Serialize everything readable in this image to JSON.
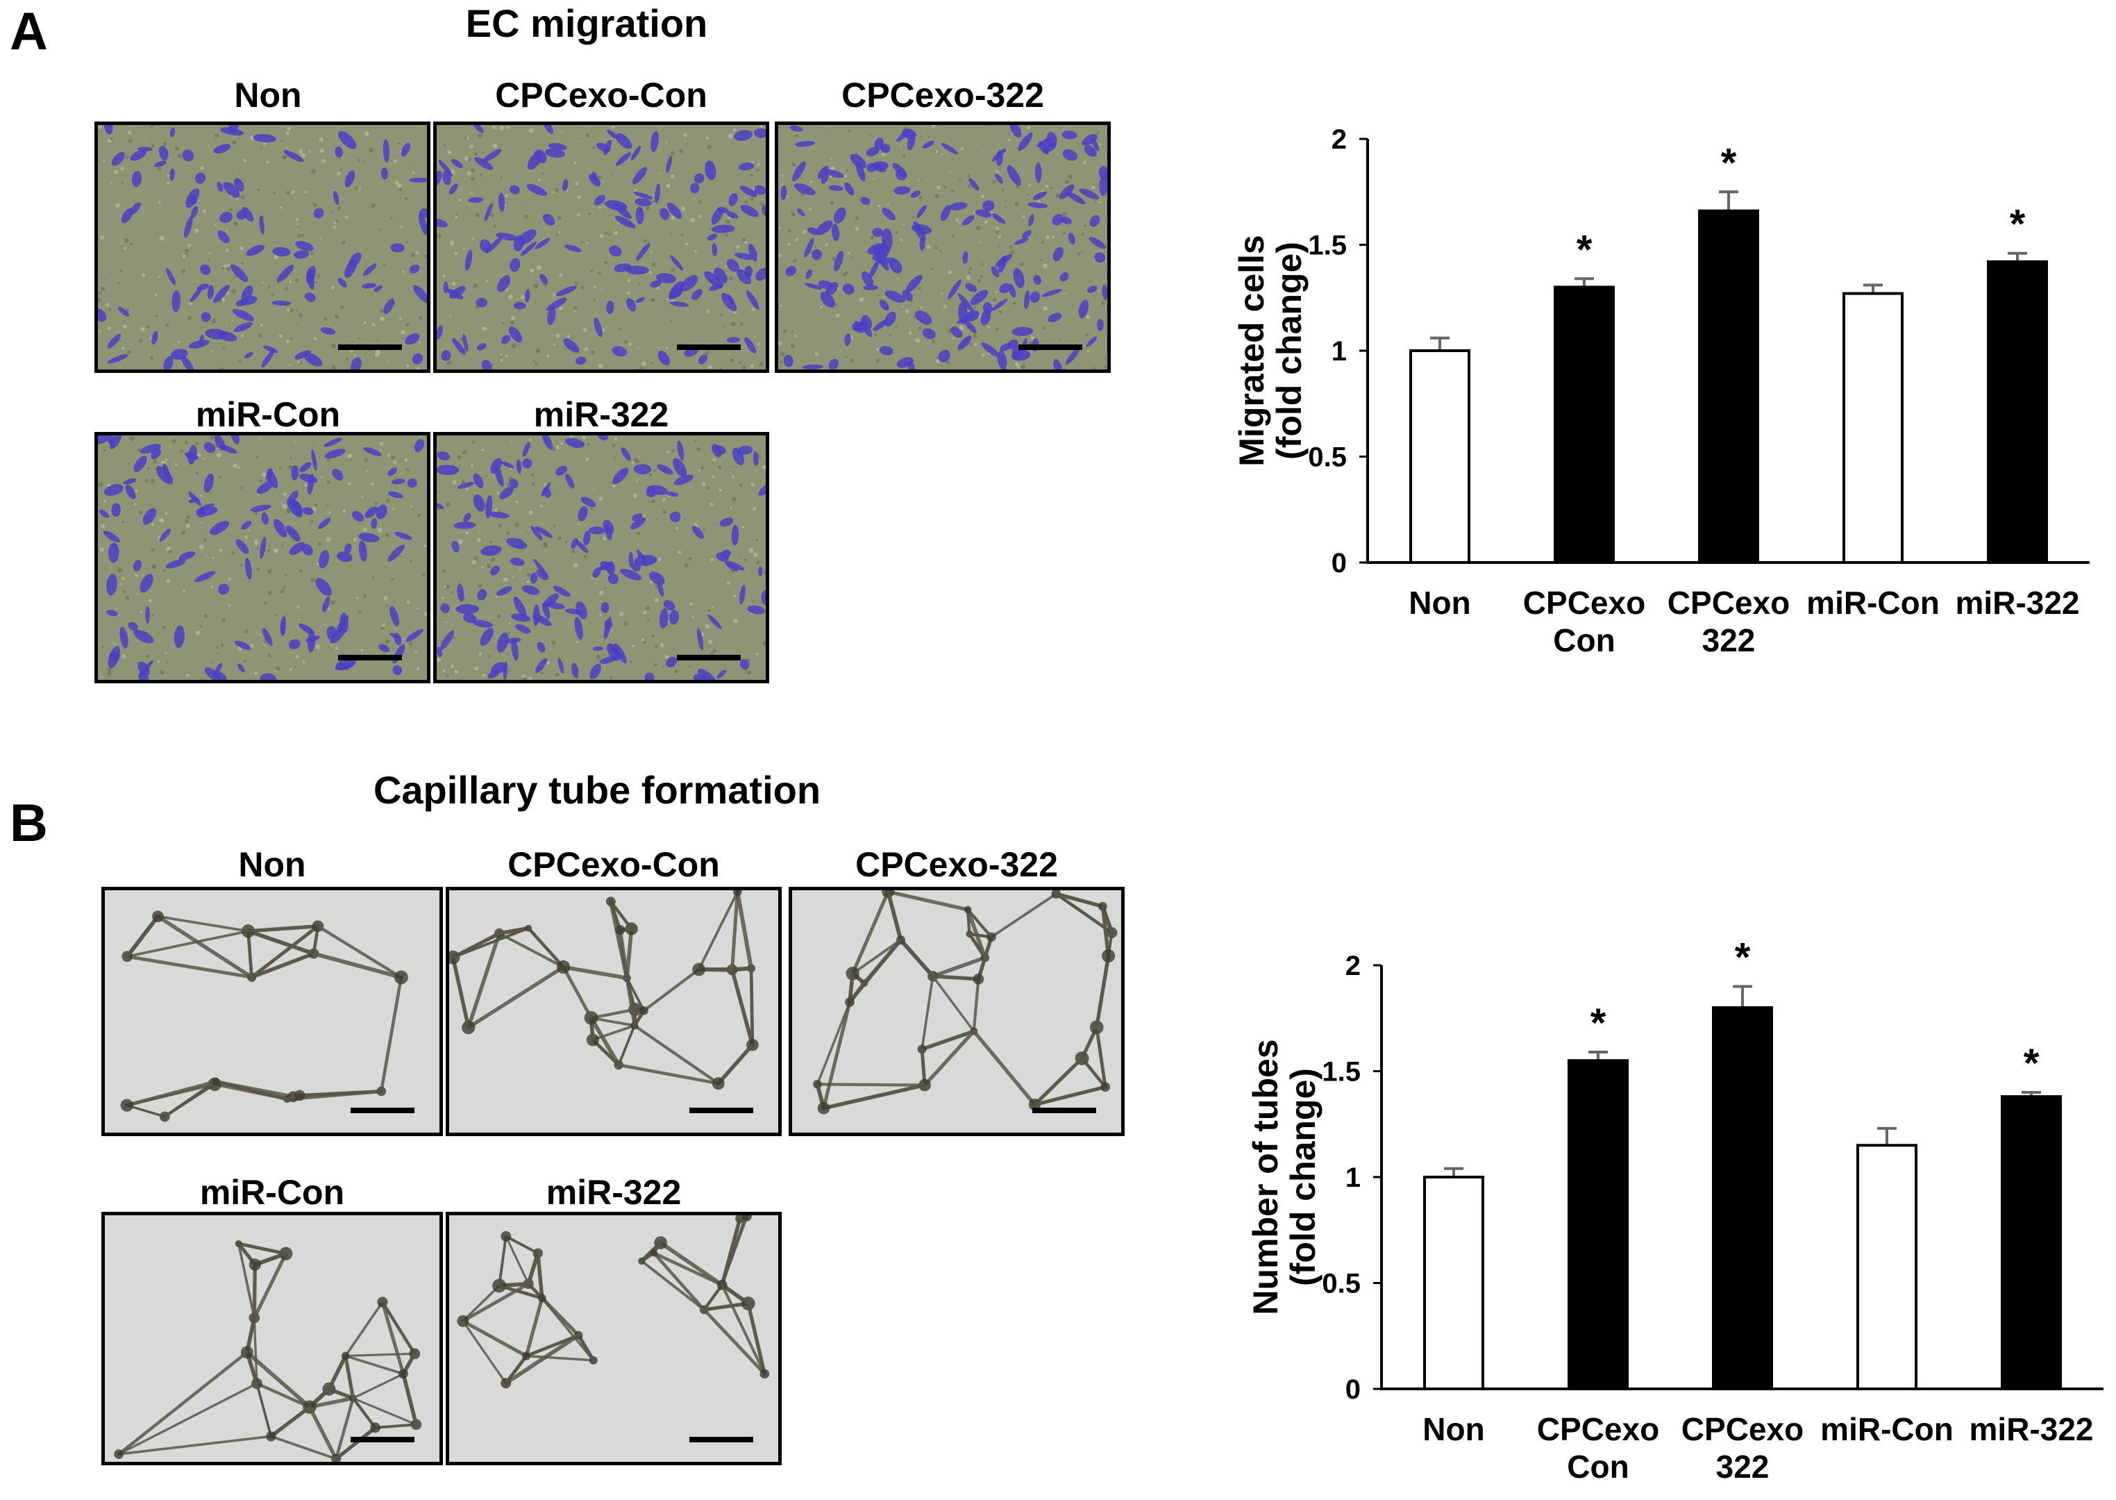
{
  "panel_a": {
    "letter": "A",
    "title": "EC migration",
    "images": [
      {
        "label": "Non"
      },
      {
        "label": "CPCexo-Con"
      },
      {
        "label": "CPCexo-322"
      },
      {
        "label": "miR-Con"
      },
      {
        "label": "miR-322"
      }
    ]
  },
  "panel_b": {
    "letter": "B",
    "title": "Capillary tube formation",
    "images": [
      {
        "label": "Non"
      },
      {
        "label": "CPCexo-Con"
      },
      {
        "label": "CPCexo-322"
      },
      {
        "label": "miR-Con"
      },
      {
        "label": "miR-322"
      }
    ]
  },
  "colors": {
    "migration_background": "#8f9474",
    "migration_cells": "#4b3fc6",
    "tube_background": "#d7dad8",
    "tube_network": "#5a5748",
    "bar_control": "#ffffff",
    "bar_treated": "#000000",
    "error_bar": "#666666"
  },
  "chart_data": [
    {
      "type": "bar",
      "title": "",
      "xlabel": "",
      "ylabel": [
        "Migrated cells",
        "(fold change)"
      ],
      "ylim": [
        0,
        2
      ],
      "yticks": [
        "0",
        "0.5",
        "1",
        "1.5",
        "2"
      ],
      "categories": [
        [
          "Non"
        ],
        [
          "CPCexo",
          "Con"
        ],
        [
          "CPCexo",
          "322"
        ],
        [
          "miR-Con"
        ],
        [
          "miR-322"
        ]
      ],
      "values": [
        1.0,
        1.3,
        1.66,
        1.27,
        1.42
      ],
      "errors": [
        0.06,
        0.04,
        0.09,
        0.04,
        0.04
      ],
      "fills": [
        "white",
        "black",
        "black",
        "white",
        "black"
      ],
      "significance": [
        "",
        "*",
        "*",
        "",
        "*"
      ],
      "grid": false,
      "legend": "none"
    },
    {
      "type": "bar",
      "title": "",
      "xlabel": "",
      "ylabel": [
        "Number of tubes",
        "(fold change)"
      ],
      "ylim": [
        0,
        2
      ],
      "yticks": [
        "0",
        "0.5",
        "1",
        "1.5",
        "2"
      ],
      "categories": [
        [
          "Non"
        ],
        [
          "CPCexo",
          "Con"
        ],
        [
          "CPCexo",
          "322"
        ],
        [
          "miR-Con"
        ],
        [
          "miR-322"
        ]
      ],
      "values": [
        1.0,
        1.55,
        1.8,
        1.15,
        1.38
      ],
      "errors": [
        0.04,
        0.04,
        0.1,
        0.08,
        0.02
      ],
      "fills": [
        "white",
        "black",
        "black",
        "white",
        "black"
      ],
      "significance": [
        "",
        "*",
        "*",
        "",
        "*"
      ],
      "grid": false,
      "legend": "none"
    }
  ]
}
